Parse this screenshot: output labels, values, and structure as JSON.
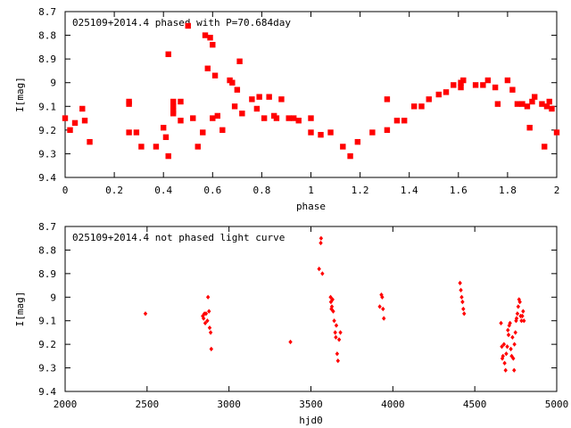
{
  "marker_color": "#ff0000",
  "chart_data": [
    {
      "type": "scatter",
      "title": "025109+2014.4 phased with P=70.684day",
      "xlabel": "phase",
      "ylabel": "I[mag]",
      "xlim": [
        0,
        2
      ],
      "ylim": [
        8.7,
        9.4
      ],
      "y_inverted": true,
      "x_ticks": [
        "0",
        "0.2",
        "0.4",
        "0.6",
        "0.8",
        "1",
        "1.2",
        "1.4",
        "1.6",
        "1.8",
        "2"
      ],
      "y_ticks": [
        "8.7",
        "8.8",
        "8.9",
        "9",
        "9.1",
        "9.2",
        "9.3",
        "9.4"
      ],
      "points": [
        [
          0.0,
          9.15
        ],
        [
          0.02,
          9.2
        ],
        [
          0.04,
          9.17
        ],
        [
          0.07,
          9.11
        ],
        [
          0.08,
          9.16
        ],
        [
          0.1,
          9.25
        ],
        [
          0.26,
          9.08
        ],
        [
          0.26,
          9.09
        ],
        [
          0.26,
          9.21
        ],
        [
          0.29,
          9.21
        ],
        [
          0.31,
          9.27
        ],
        [
          0.37,
          9.27
        ],
        [
          0.4,
          9.19
        ],
        [
          0.41,
          9.23
        ],
        [
          0.42,
          9.31
        ],
        [
          0.42,
          8.88
        ],
        [
          0.44,
          9.08
        ],
        [
          0.44,
          9.1
        ],
        [
          0.44,
          9.12
        ],
        [
          0.44,
          9.13
        ],
        [
          0.47,
          9.08
        ],
        [
          0.47,
          9.16
        ],
        [
          0.5,
          8.76
        ],
        [
          0.52,
          9.15
        ],
        [
          0.54,
          9.27
        ],
        [
          0.56,
          9.21
        ],
        [
          0.57,
          8.8
        ],
        [
          0.58,
          8.94
        ],
        [
          0.59,
          8.81
        ],
        [
          0.6,
          8.84
        ],
        [
          0.6,
          9.15
        ],
        [
          0.61,
          8.97
        ],
        [
          0.62,
          9.14
        ],
        [
          0.64,
          9.2
        ],
        [
          0.67,
          8.99
        ],
        [
          0.68,
          9.0
        ],
        [
          0.69,
          9.1
        ],
        [
          0.7,
          9.03
        ],
        [
          0.71,
          8.91
        ],
        [
          0.72,
          9.13
        ],
        [
          0.76,
          9.07
        ],
        [
          0.78,
          9.11
        ],
        [
          0.79,
          9.06
        ],
        [
          0.81,
          9.15
        ],
        [
          0.83,
          9.06
        ],
        [
          0.85,
          9.14
        ],
        [
          0.86,
          9.15
        ],
        [
          0.88,
          9.07
        ],
        [
          0.91,
          9.15
        ],
        [
          0.93,
          9.15
        ],
        [
          0.95,
          9.16
        ],
        [
          1.0,
          9.15
        ],
        [
          1.0,
          9.21
        ],
        [
          1.04,
          9.22
        ],
        [
          1.08,
          9.21
        ],
        [
          1.13,
          9.27
        ],
        [
          1.16,
          9.31
        ],
        [
          1.19,
          9.25
        ],
        [
          1.25,
          9.21
        ],
        [
          1.31,
          9.2
        ],
        [
          1.31,
          9.07
        ],
        [
          1.35,
          9.16
        ],
        [
          1.38,
          9.16
        ],
        [
          1.42,
          9.1
        ],
        [
          1.45,
          9.1
        ],
        [
          1.48,
          9.07
        ],
        [
          1.52,
          9.05
        ],
        [
          1.55,
          9.04
        ],
        [
          1.58,
          9.01
        ],
        [
          1.61,
          9.0
        ],
        [
          1.61,
          9.02
        ],
        [
          1.62,
          8.99
        ],
        [
          1.67,
          9.01
        ],
        [
          1.7,
          9.01
        ],
        [
          1.72,
          8.99
        ],
        [
          1.75,
          9.02
        ],
        [
          1.76,
          9.09
        ],
        [
          1.8,
          8.99
        ],
        [
          1.82,
          9.03
        ],
        [
          1.84,
          9.09
        ],
        [
          1.86,
          9.09
        ],
        [
          1.88,
          9.1
        ],
        [
          1.89,
          9.19
        ],
        [
          1.9,
          9.08
        ],
        [
          1.91,
          9.06
        ],
        [
          1.94,
          9.09
        ],
        [
          1.95,
          9.27
        ],
        [
          1.96,
          9.1
        ],
        [
          1.97,
          9.08
        ],
        [
          1.98,
          9.11
        ],
        [
          2.0,
          9.21
        ]
      ]
    },
    {
      "type": "scatter",
      "title": "025109+2014.4 not phased light curve",
      "xlabel": "hjd0",
      "ylabel": "I[mag]",
      "xlim": [
        2000,
        5000
      ],
      "ylim": [
        8.7,
        9.4
      ],
      "y_inverted": true,
      "x_ticks": [
        "2000",
        "2500",
        "3000",
        "3500",
        "4000",
        "4500",
        "5000"
      ],
      "y_ticks": [
        "8.7",
        "8.8",
        "8.9",
        "9",
        "9.1",
        "9.2",
        "9.3",
        "9.4"
      ],
      "points": [
        [
          2490,
          9.07
        ],
        [
          2840,
          9.08
        ],
        [
          2845,
          9.09
        ],
        [
          2850,
          9.07
        ],
        [
          2855,
          9.11
        ],
        [
          2860,
          9.07
        ],
        [
          2868,
          9.1
        ],
        [
          2872,
          9.0
        ],
        [
          2878,
          9.06
        ],
        [
          2882,
          9.13
        ],
        [
          2888,
          9.15
        ],
        [
          2892,
          9.22
        ],
        [
          3375,
          9.19
        ],
        [
          3550,
          8.88
        ],
        [
          3560,
          8.77
        ],
        [
          3562,
          8.75
        ],
        [
          3570,
          8.9
        ],
        [
          3620,
          9.0
        ],
        [
          3622,
          9.02
        ],
        [
          3625,
          9.05
        ],
        [
          3628,
          9.04
        ],
        [
          3632,
          9.01
        ],
        [
          3636,
          9.06
        ],
        [
          3642,
          9.1
        ],
        [
          3648,
          9.15
        ],
        [
          3652,
          9.17
        ],
        [
          3655,
          9.12
        ],
        [
          3660,
          9.24
        ],
        [
          3665,
          9.27
        ],
        [
          3672,
          9.18
        ],
        [
          3680,
          9.15
        ],
        [
          3920,
          9.04
        ],
        [
          3930,
          8.99
        ],
        [
          3935,
          9.0
        ],
        [
          3940,
          9.05
        ],
        [
          3945,
          9.09
        ],
        [
          4410,
          8.94
        ],
        [
          4415,
          8.97
        ],
        [
          4420,
          9.0
        ],
        [
          4425,
          9.02
        ],
        [
          4430,
          9.05
        ],
        [
          4435,
          9.07
        ],
        [
          4660,
          9.11
        ],
        [
          4665,
          9.21
        ],
        [
          4668,
          9.26
        ],
        [
          4672,
          9.25
        ],
        [
          4678,
          9.2
        ],
        [
          4682,
          9.28
        ],
        [
          4688,
          9.31
        ],
        [
          4692,
          9.24
        ],
        [
          4698,
          9.21
        ],
        [
          4702,
          9.14
        ],
        [
          4706,
          9.16
        ],
        [
          4710,
          9.12
        ],
        [
          4715,
          9.11
        ],
        [
          4720,
          9.22
        ],
        [
          4725,
          9.25
        ],
        [
          4730,
          9.17
        ],
        [
          4735,
          9.26
        ],
        [
          4740,
          9.31
        ],
        [
          4742,
          9.2
        ],
        [
          4748,
          9.15
        ],
        [
          4752,
          9.1
        ],
        [
          4755,
          9.09
        ],
        [
          4760,
          9.07
        ],
        [
          4765,
          9.04
        ],
        [
          4770,
          9.01
        ],
        [
          4775,
          9.02
        ],
        [
          4780,
          9.08
        ],
        [
          4785,
          9.1
        ],
        [
          4790,
          9.08
        ],
        [
          4795,
          9.06
        ],
        [
          4800,
          9.1
        ]
      ]
    }
  ]
}
